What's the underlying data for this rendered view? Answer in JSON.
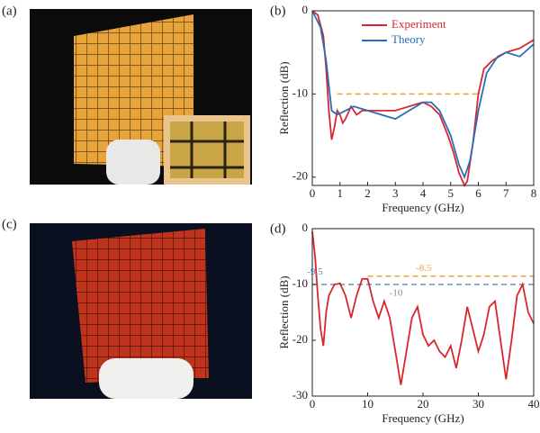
{
  "photo_labels": [
    "(a)",
    "(c)"
  ],
  "chart_data": [
    {
      "type": "line",
      "panel": "(b)",
      "x_label": "Frequency (GHz)",
      "y_label": "Reflection (dB)",
      "xlim": [
        0,
        8
      ],
      "xticks": [
        0,
        1,
        2,
        3,
        4,
        5,
        6,
        7,
        8
      ],
      "ylim": [
        -21,
        0
      ],
      "yticks": [
        -20,
        -10,
        0
      ],
      "legend": "upper center",
      "series": [
        {
          "name": "Experiment",
          "color": "#d9262e",
          "x": [
            0,
            0.2,
            0.4,
            0.5,
            0.6,
            0.7,
            0.8,
            0.9,
            1.0,
            1.1,
            1.2,
            1.4,
            1.6,
            1.8,
            2.0,
            2.5,
            3.0,
            3.5,
            4.0,
            4.3,
            4.6,
            4.9,
            5.1,
            5.3,
            5.5,
            5.6,
            5.8,
            6.0,
            6.2,
            6.5,
            7.0,
            7.5,
            8.0
          ],
          "values": [
            0,
            -0.5,
            -3,
            -7,
            -12,
            -15.5,
            -14,
            -12,
            -12.5,
            -13.5,
            -13,
            -11.5,
            -12.5,
            -12,
            -12,
            -12,
            -12,
            -11.5,
            -11,
            -11.5,
            -12.5,
            -15,
            -17,
            -19.5,
            -21,
            -20.5,
            -16,
            -10,
            -7,
            -6,
            -5,
            -4.5,
            -3.5
          ]
        },
        {
          "name": "Theory",
          "color": "#2a6db5",
          "x": [
            0,
            0.3,
            0.5,
            0.7,
            0.9,
            1.2,
            1.5,
            2.0,
            2.5,
            3.0,
            3.5,
            4.0,
            4.3,
            4.6,
            5.0,
            5.3,
            5.5,
            5.7,
            6.0,
            6.3,
            6.7,
            7.0,
            7.5,
            8.0
          ],
          "values": [
            0,
            -2,
            -6,
            -12,
            -12.5,
            -12,
            -11.5,
            -12,
            -12.5,
            -13,
            -12,
            -11,
            -11,
            -12,
            -15,
            -18.5,
            -20,
            -18,
            -12,
            -7.5,
            -5.5,
            -5,
            -5.5,
            -4
          ]
        }
      ],
      "reference_lines": [
        {
          "y": -10,
          "x": [
            0.9,
            6.0
          ],
          "color": "#f0a030"
        }
      ]
    },
    {
      "type": "line",
      "panel": "(d)",
      "x_label": "Frequency (GHz)",
      "y_label": "Reflection (dB)",
      "xlim": [
        0,
        40
      ],
      "xticks": [
        0,
        10,
        20,
        30,
        40
      ],
      "ylim": [
        -30,
        0
      ],
      "yticks": [
        -30,
        -20,
        -10,
        0
      ],
      "series": [
        {
          "color": "#d9262e",
          "x": [
            0,
            0.5,
            1,
            1.5,
            2,
            2.5,
            3,
            4,
            5,
            6,
            7,
            8,
            9,
            10,
            11,
            12,
            13,
            14,
            15,
            16,
            17,
            18,
            19,
            20,
            21,
            22,
            23,
            24,
            25,
            26,
            27,
            28,
            29,
            30,
            31,
            32,
            33,
            34,
            35,
            36,
            37,
            38,
            39,
            40
          ],
          "values": [
            -0.5,
            -5,
            -12,
            -18,
            -21,
            -15,
            -12,
            -10,
            -9.8,
            -12,
            -16,
            -12,
            -9,
            -9,
            -13,
            -16,
            -13,
            -16,
            -22,
            -28,
            -22,
            -16,
            -14,
            -19,
            -21,
            -20,
            -22,
            -23,
            -21,
            -25,
            -20,
            -14,
            -18,
            -22,
            -19,
            -14,
            -13,
            -20,
            -27,
            -20,
            -12,
            -10,
            -15,
            -17
          ]
        }
      ],
      "reference_lines": [
        {
          "y": -8.5,
          "x": [
            10,
            40
          ],
          "color": "#e8a640",
          "label": "-8.5"
        },
        {
          "y": -10,
          "x": [
            0,
            40
          ],
          "color": "#6a8fc0",
          "label": "-10",
          "label_color": "#888888"
        }
      ],
      "annotations": [
        {
          "text": "-9.5",
          "color": "#4a90c8"
        }
      ]
    }
  ]
}
